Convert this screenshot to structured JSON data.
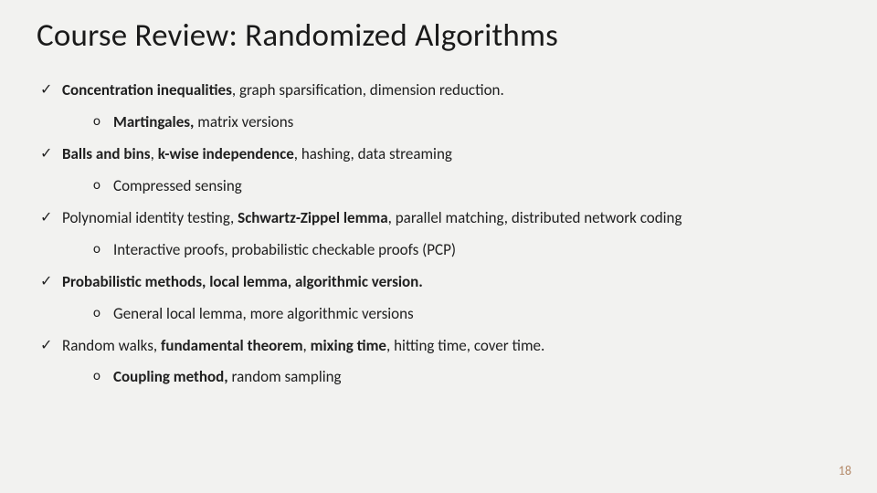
{
  "slide": {
    "background_color": "#f2f2f0",
    "text_color": "#202020",
    "title": "Course Review: Randomized Algorithms",
    "title_fontsize": 35,
    "body_fontsize": 17,
    "page_number": "18",
    "page_number_color": "#b48a6a",
    "bullet_check_glyph": "✓",
    "subbullet_glyph": "o",
    "items": [
      {
        "segments": [
          {
            "text": "Concentration inequalities",
            "bold": true
          },
          {
            "text": ", graph sparsification, dimension reduction.",
            "bold": false
          }
        ],
        "sub": [
          {
            "segments": [
              {
                "text": "Martingales,",
                "bold": true
              },
              {
                "text": " matrix versions",
                "bold": false
              }
            ]
          }
        ]
      },
      {
        "segments": [
          {
            "text": "Balls and bins",
            "bold": true
          },
          {
            "text": ", ",
            "bold": false
          },
          {
            "text": "k-wise independence",
            "bold": true
          },
          {
            "text": ", hashing, data streaming",
            "bold": false
          }
        ],
        "sub": [
          {
            "segments": [
              {
                "text": "Compressed sensing",
                "bold": false
              }
            ]
          }
        ]
      },
      {
        "segments": [
          {
            "text": "Polynomial identity testing, ",
            "bold": false
          },
          {
            "text": "Schwartz-Zippel lemma",
            "bold": true
          },
          {
            "text": ", parallel matching, distributed network coding",
            "bold": false
          }
        ],
        "sub": [
          {
            "segments": [
              {
                "text": "Interactive proofs, probabilistic checkable proofs (PCP)",
                "bold": false
              }
            ]
          }
        ]
      },
      {
        "segments": [
          {
            "text": "Probabilistic methods, local lemma, algorithmic version.",
            "bold": true
          }
        ],
        "sub": [
          {
            "segments": [
              {
                "text": "General local lemma, more algorithmic versions",
                "bold": false
              }
            ]
          }
        ]
      },
      {
        "segments": [
          {
            "text": "Random walks, ",
            "bold": false
          },
          {
            "text": "fundamental theorem",
            "bold": true
          },
          {
            "text": ", ",
            "bold": false
          },
          {
            "text": "mixing time",
            "bold": true
          },
          {
            "text": ", hitting time, cover time.",
            "bold": false
          }
        ],
        "sub": [
          {
            "segments": [
              {
                "text": "Coupling method,",
                "bold": true
              },
              {
                "text": " random sampling",
                "bold": false
              }
            ]
          }
        ]
      }
    ]
  }
}
